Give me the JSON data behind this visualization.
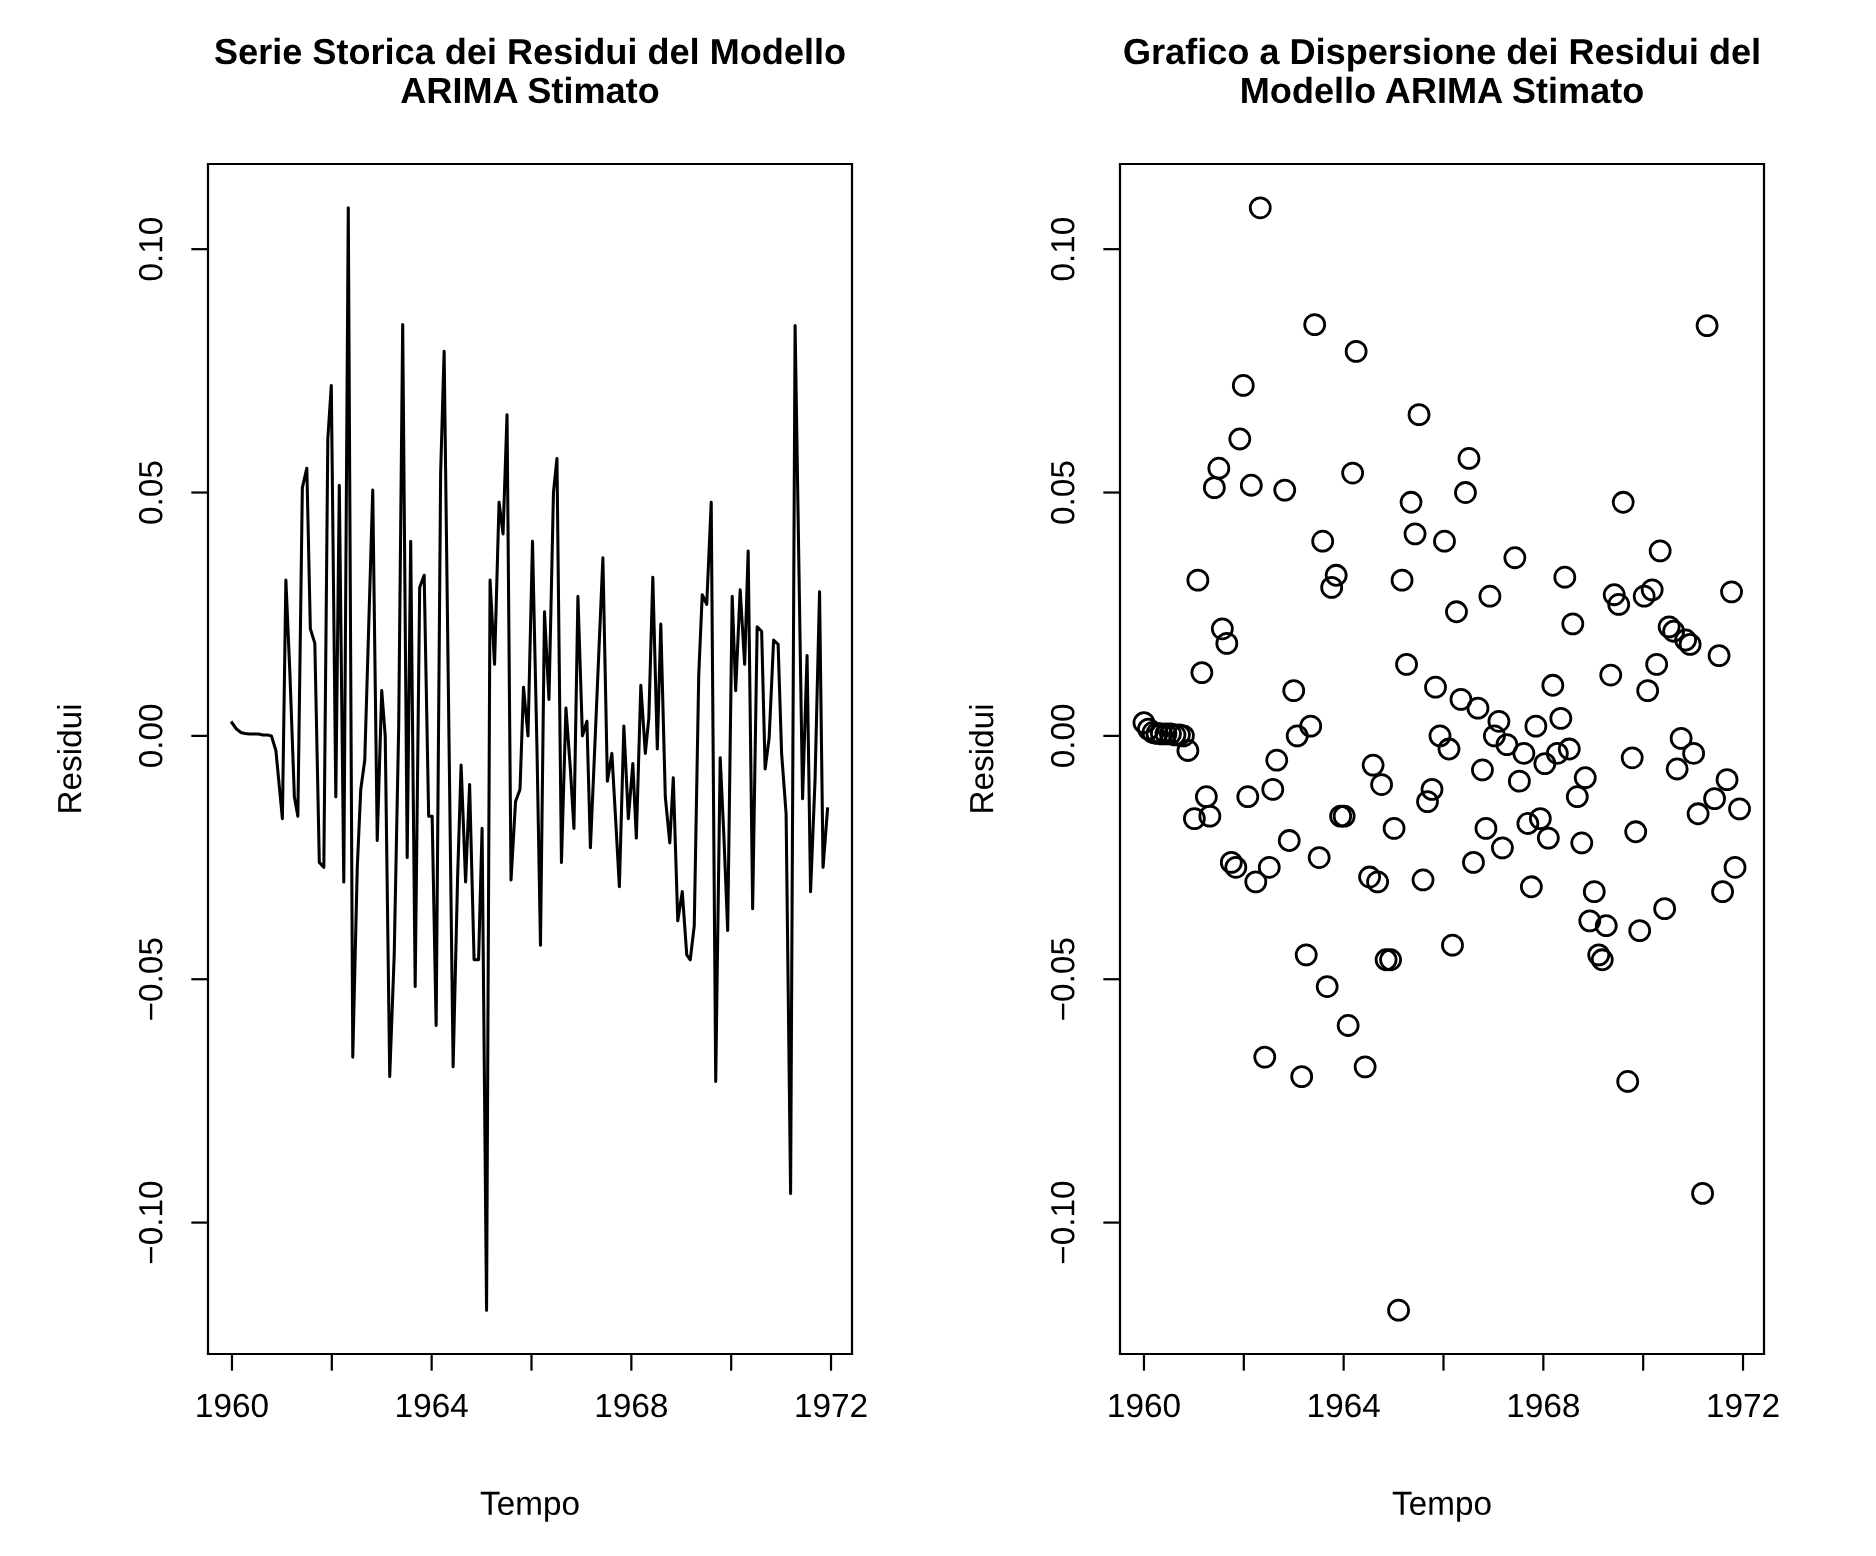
{
  "chart_data": [
    {
      "type": "line",
      "title": "Serie Storica dei Residui del Modello\nARIMA Stimato",
      "xlabel": "Tempo",
      "ylabel": "Residui",
      "x": [
        1960.0,
        1960.09,
        1960.18,
        1960.26,
        1960.35,
        1960.44,
        1960.53,
        1960.62,
        1960.71,
        1960.79,
        1960.88,
        1961.01,
        1961.08,
        1961.16,
        1961.25,
        1961.32,
        1961.41,
        1961.5,
        1961.57,
        1961.66,
        1961.75,
        1961.84,
        1961.92,
        1961.99,
        1962.08,
        1962.15,
        1962.24,
        1962.33,
        1962.42,
        1962.51,
        1962.58,
        1962.66,
        1962.82,
        1962.91,
        1963.0,
        1963.07,
        1963.16,
        1963.25,
        1963.34,
        1963.42,
        1963.51,
        1963.58,
        1963.67,
        1963.76,
        1963.85,
        1963.94,
        1964.01,
        1964.09,
        1964.18,
        1964.25,
        1964.43,
        1964.52,
        1964.59,
        1964.68,
        1964.76,
        1964.85,
        1964.94,
        1965.01,
        1965.1,
        1965.17,
        1965.26,
        1965.35,
        1965.43,
        1965.51,
        1965.59,
        1965.68,
        1965.77,
        1965.84,
        1965.93,
        1966.02,
        1966.11,
        1966.18,
        1966.26,
        1966.35,
        1966.44,
        1966.51,
        1966.6,
        1966.69,
        1966.78,
        1966.85,
        1966.93,
        1967.02,
        1967.11,
        1967.18,
        1967.27,
        1967.43,
        1967.52,
        1967.61,
        1967.69,
        1967.76,
        1967.85,
        1967.94,
        1968.03,
        1968.1,
        1968.19,
        1968.28,
        1968.35,
        1968.43,
        1968.52,
        1968.59,
        1968.68,
        1968.77,
        1968.84,
        1968.93,
        1969.02,
        1969.11,
        1969.18,
        1969.26,
        1969.35,
        1969.42,
        1969.51,
        1969.6,
        1969.69,
        1969.78,
        1969.85,
        1969.93,
        1970.02,
        1970.09,
        1970.18,
        1970.27,
        1970.34,
        1970.43,
        1970.52,
        1970.61,
        1970.68,
        1970.76,
        1970.85,
        1970.94,
        1971.01,
        1971.1,
        1971.19,
        1971.28,
        1971.43,
        1971.52,
        1971.59,
        1971.68,
        1971.77,
        1971.84,
        1971.93
      ],
      "series": [
        {
          "color": "#000000",
          "values": [
            0.0027,
            0.0014,
            0.0007,
            0.0005,
            0.0004,
            0.0004,
            0.0004,
            0.0002,
            0.0002,
            0.0,
            -0.003,
            -0.017,
            0.032,
            0.013,
            -0.0125,
            -0.0165,
            0.051,
            0.055,
            0.022,
            0.019,
            -0.026,
            -0.027,
            0.061,
            0.072,
            -0.0125,
            0.0515,
            -0.03,
            0.1085,
            -0.066,
            -0.027,
            -0.011,
            -0.005,
            0.0505,
            -0.0215,
            0.0093,
            0.0,
            -0.07,
            -0.045,
            0.002,
            0.0845,
            -0.025,
            0.04,
            -0.0515,
            0.0305,
            0.033,
            -0.0165,
            -0.0165,
            -0.0595,
            0.054,
            0.079,
            -0.068,
            -0.029,
            -0.006,
            -0.03,
            -0.01,
            -0.046,
            -0.046,
            -0.019,
            -0.118,
            0.032,
            0.0147,
            0.048,
            0.0415,
            0.066,
            -0.0296,
            -0.0135,
            -0.011,
            0.01,
            0.0,
            0.04,
            -0.0027,
            -0.043,
            0.0255,
            0.0075,
            0.05,
            0.057,
            -0.026,
            0.0057,
            -0.007,
            -0.019,
            0.0287,
            0.0,
            0.003,
            -0.023,
            -0.0018,
            0.0366,
            -0.0093,
            -0.0036,
            -0.018,
            -0.031,
            0.002,
            -0.017,
            -0.0057,
            -0.021,
            0.0104,
            -0.0036,
            0.0036,
            0.0326,
            -0.0027,
            0.023,
            -0.0125,
            -0.022,
            -0.0086,
            -0.038,
            -0.032,
            -0.045,
            -0.046,
            -0.039,
            0.0125,
            0.029,
            0.027,
            0.048,
            -0.071,
            -0.0045,
            -0.0197,
            -0.04,
            0.0287,
            0.0093,
            0.03,
            0.0147,
            0.038,
            -0.0355,
            0.0224,
            0.0215,
            -0.0068,
            -0.0005,
            0.0197,
            0.0188,
            -0.0036,
            -0.016,
            -0.094,
            0.0843,
            -0.0129,
            0.0165,
            -0.032,
            -0.009,
            0.0296,
            -0.027,
            -0.015
          ]
        }
      ],
      "xlim": [
        1959.52,
        1972.42
      ],
      "ylim": [
        -0.127,
        0.1175
      ],
      "xticks": [
        1960,
        {
          "value": 1962,
          "label": null
        },
        1964,
        {
          "value": 1966,
          "label": null
        },
        1968,
        {
          "value": 1970,
          "label": null
        },
        1972
      ],
      "yticks": [
        {
          "value": -0.1,
          "label": "−0.10"
        },
        {
          "value": -0.05,
          "label": "−0.05"
        },
        {
          "value": 0,
          "label": "0.00"
        },
        {
          "value": 0.05,
          "label": "0.05"
        },
        {
          "value": 0.1,
          "label": "0.10"
        }
      ],
      "grid": false,
      "legend": false,
      "marker": "none",
      "line_style": "solid"
    },
    {
      "type": "scatter",
      "title": "Grafico a Dispersione dei Residui del\nModello ARIMA Stimato",
      "xlabel": "Tempo",
      "ylabel": "Residui",
      "x": [
        1960.0,
        1960.09,
        1960.18,
        1960.26,
        1960.35,
        1960.44,
        1960.53,
        1960.62,
        1960.71,
        1960.79,
        1960.88,
        1961.01,
        1961.08,
        1961.16,
        1961.25,
        1961.32,
        1961.41,
        1961.5,
        1961.57,
        1961.66,
        1961.75,
        1961.84,
        1961.92,
        1961.99,
        1962.08,
        1962.15,
        1962.24,
        1962.33,
        1962.42,
        1962.51,
        1962.58,
        1962.66,
        1962.82,
        1962.91,
        1963.0,
        1963.07,
        1963.16,
        1963.25,
        1963.34,
        1963.42,
        1963.51,
        1963.58,
        1963.67,
        1963.76,
        1963.85,
        1963.94,
        1964.01,
        1964.09,
        1964.18,
        1964.25,
        1964.43,
        1964.52,
        1964.59,
        1964.68,
        1964.76,
        1964.85,
        1964.94,
        1965.01,
        1965.1,
        1965.17,
        1965.26,
        1965.35,
        1965.43,
        1965.51,
        1965.59,
        1965.68,
        1965.77,
        1965.84,
        1965.93,
        1966.02,
        1966.11,
        1966.18,
        1966.26,
        1966.35,
        1966.44,
        1966.51,
        1966.6,
        1966.69,
        1966.78,
        1966.85,
        1966.93,
        1967.02,
        1967.11,
        1967.18,
        1967.27,
        1967.43,
        1967.52,
        1967.61,
        1967.69,
        1967.76,
        1967.85,
        1967.94,
        1968.03,
        1968.1,
        1968.19,
        1968.28,
        1968.35,
        1968.43,
        1968.52,
        1968.59,
        1968.68,
        1968.77,
        1968.84,
        1968.93,
        1969.02,
        1969.11,
        1969.18,
        1969.26,
        1969.35,
        1969.42,
        1969.51,
        1969.6,
        1969.69,
        1969.78,
        1969.85,
        1969.93,
        1970.02,
        1970.09,
        1970.18,
        1970.27,
        1970.34,
        1970.43,
        1970.52,
        1970.61,
        1970.68,
        1970.76,
        1970.85,
        1970.94,
        1971.01,
        1971.1,
        1971.19,
        1971.28,
        1971.43,
        1971.52,
        1971.59,
        1971.68,
        1971.77,
        1971.84,
        1971.93
      ],
      "series": [
        {
          "color": "#000000",
          "values": [
            0.0027,
            0.0014,
            0.0007,
            0.0005,
            0.0004,
            0.0004,
            0.0004,
            0.0002,
            0.0002,
            0.0,
            -0.003,
            -0.017,
            0.032,
            0.013,
            -0.0125,
            -0.0165,
            0.051,
            0.055,
            0.022,
            0.019,
            -0.026,
            -0.027,
            0.061,
            0.072,
            -0.0125,
            0.0515,
            -0.03,
            0.1085,
            -0.066,
            -0.027,
            -0.011,
            -0.005,
            0.0505,
            -0.0215,
            0.0093,
            0.0,
            -0.07,
            -0.045,
            0.002,
            0.0845,
            -0.025,
            0.04,
            -0.0515,
            0.0305,
            0.033,
            -0.0165,
            -0.0165,
            -0.0595,
            0.054,
            0.079,
            -0.068,
            -0.029,
            -0.006,
            -0.03,
            -0.01,
            -0.046,
            -0.046,
            -0.019,
            -0.118,
            0.032,
            0.0147,
            0.048,
            0.0415,
            0.066,
            -0.0296,
            -0.0135,
            -0.011,
            0.01,
            0.0,
            0.04,
            -0.0027,
            -0.043,
            0.0255,
            0.0075,
            0.05,
            0.057,
            -0.026,
            0.0057,
            -0.007,
            -0.019,
            0.0287,
            0.0,
            0.003,
            -0.023,
            -0.0018,
            0.0366,
            -0.0093,
            -0.0036,
            -0.018,
            -0.031,
            0.002,
            -0.017,
            -0.0057,
            -0.021,
            0.0104,
            -0.0036,
            0.0036,
            0.0326,
            -0.0027,
            0.023,
            -0.0125,
            -0.022,
            -0.0086,
            -0.038,
            -0.032,
            -0.045,
            -0.046,
            -0.039,
            0.0125,
            0.029,
            0.027,
            0.048,
            -0.071,
            -0.0045,
            -0.0197,
            -0.04,
            0.0287,
            0.0093,
            0.03,
            0.0147,
            0.038,
            -0.0355,
            0.0224,
            0.0215,
            -0.0068,
            -0.0005,
            0.0197,
            0.0188,
            -0.0036,
            -0.016,
            -0.094,
            0.0843,
            -0.0129,
            0.0165,
            -0.032,
            -0.009,
            0.0296,
            -0.027,
            -0.015
          ]
        }
      ],
      "xlim": [
        1959.52,
        1972.42
      ],
      "ylim": [
        -0.127,
        0.1175
      ],
      "xticks": [
        1960,
        {
          "value": 1962,
          "label": null
        },
        1964,
        {
          "value": 1966,
          "label": null
        },
        1968,
        {
          "value": 1970,
          "label": null
        },
        1972
      ],
      "yticks": [
        {
          "value": -0.1,
          "label": "−0.10"
        },
        {
          "value": -0.05,
          "label": "−0.05"
        },
        {
          "value": 0,
          "label": "0.00"
        },
        {
          "value": 0.05,
          "label": "0.05"
        },
        {
          "value": 0.1,
          "label": "0.10"
        }
      ],
      "grid": false,
      "legend": false,
      "marker": "circle"
    }
  ]
}
